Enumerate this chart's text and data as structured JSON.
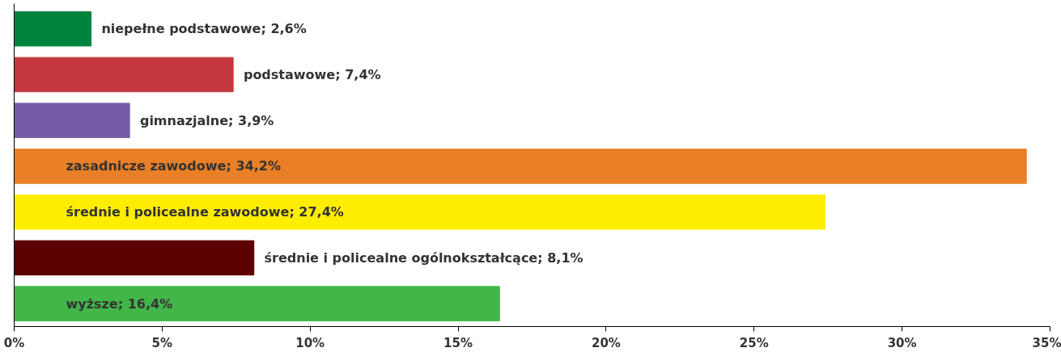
{
  "chart_data": {
    "type": "bar",
    "orientation": "horizontal",
    "categories": [
      null,
      null,
      null,
      null,
      null,
      null,
      null
    ],
    "values": [
      2.6,
      7.4,
      3.9,
      34.2,
      27.4,
      8.1,
      16.4
    ],
    "colors": [
      "#00843d",
      "#c4373e",
      "#735ca5",
      "#e97f26",
      "#ffed00",
      "#5c0000",
      "#42b649"
    ],
    "value_labels": [
      "niepełne podstawowe; 2,6%",
      "podstawowe; 7,4%",
      "gimnazjalne; 3,9%",
      "zasadnicze zawodowe; 34,2%",
      "średnie i policealne zawodowe; 27,4%",
      "średnie i policealne ogólnokształcące; 8,1%",
      "wyższe; 16,4%"
    ],
    "xlim": [
      0,
      35
    ],
    "xticks": [
      {
        "value": 0,
        "label": "0%"
      },
      {
        "value": 5,
        "label": "5%"
      },
      {
        "value": 10,
        "label": "10%"
      },
      {
        "value": 15,
        "label": "15%"
      },
      {
        "value": 20,
        "label": "20%"
      },
      {
        "value": 25,
        "label": "25%"
      },
      {
        "value": 30,
        "label": "30%"
      },
      {
        "value": 35,
        "label": "35%"
      }
    ],
    "tick_labels": "x",
    "grid": false
  }
}
